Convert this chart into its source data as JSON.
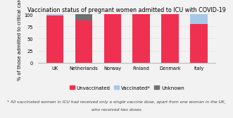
{
  "title": "Vaccination status of pregnant women admitted to ICU with COVID-19",
  "ylabel": "% of those admitted to critical care",
  "categories": [
    "UK",
    "Netherlands",
    "Norway",
    "Finland",
    "Denmark",
    "Italy"
  ],
  "unvaccinated": [
    97,
    87,
    100,
    100,
    100,
    80
  ],
  "vaccinated": [
    3,
    0,
    0,
    0,
    0,
    20
  ],
  "unknown": [
    0,
    13,
    0,
    0,
    0,
    0
  ],
  "color_unvaccinated": "#f03050",
  "color_vaccinated": "#a8c8e8",
  "color_unknown": "#707070",
  "footnote_line1": "* All vaccinated women in ICU had received only a single vaccine dose, apart from one woman in the UK,",
  "footnote_line2": "who received two doses",
  "legend_labels": [
    "Unvaccinated",
    "Vaccinated*",
    "Unknown"
  ],
  "background_color": "#f2f2f2",
  "ylim": [
    0,
    100
  ],
  "yticks": [
    0,
    25,
    50,
    75,
    100
  ],
  "title_fontsize": 5.8,
  "axis_fontsize": 4.8,
  "tick_fontsize": 4.8,
  "legend_fontsize": 5.0,
  "footnote_fontsize": 4.2
}
